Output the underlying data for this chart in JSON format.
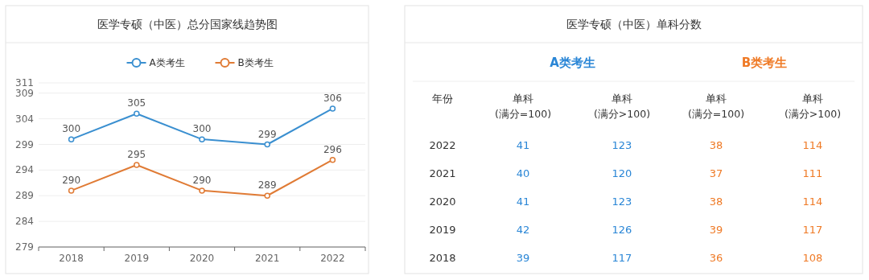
{
  "chart_data": [
    {
      "type": "line",
      "title": "医学专硕（中医）总分国家线趋势图",
      "categories": [
        "2018",
        "2019",
        "2020",
        "2021",
        "2022"
      ],
      "series": [
        {
          "name": "A类考生",
          "color": "#3a8fd0",
          "values": [
            300,
            305,
            300,
            299,
            306
          ]
        },
        {
          "name": "B类考生",
          "color": "#e07b35",
          "values": [
            290,
            295,
            290,
            289,
            296
          ]
        }
      ],
      "ylim": [
        279,
        311
      ],
      "yticks": [
        279,
        284,
        289,
        294,
        299,
        304,
        309,
        311
      ],
      "grid": "y",
      "legend": "top",
      "marker": "circle",
      "line_style": "solid",
      "data_labels": true
    },
    {
      "type": "heatmap",
      "title": "医学专硕（中医）单科分数",
      "ylabel": "年份",
      "annotations": [
        "A类考生",
        "B类考生"
      ],
      "categories": [
        "单科\n(满分=100)",
        "单科\n(满分>100)",
        "单科\n(满分=100)",
        "单科\n(满分>100)"
      ],
      "y_categories": [
        "2022",
        "2021",
        "2020",
        "2019",
        "2018"
      ],
      "colors": [
        "#2a86d6",
        "#2a86d6",
        "#ef7a26",
        "#ef7a26"
      ],
      "cells": [
        [
          41,
          123,
          38,
          114
        ],
        [
          40,
          120,
          37,
          111
        ],
        [
          41,
          123,
          38,
          114
        ],
        [
          42,
          126,
          39,
          117
        ],
        [
          39,
          117,
          36,
          108
        ]
      ],
      "data_labels": true
    }
  ]
}
